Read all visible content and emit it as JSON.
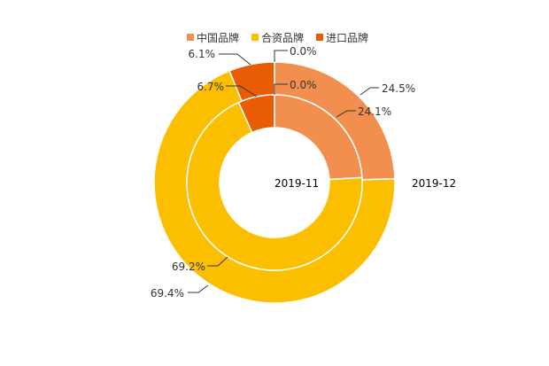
{
  "chart_data": {
    "type": "pie",
    "variant": "nested-donut",
    "legend": [
      "中国品牌",
      "合资品牌",
      "进口品牌"
    ],
    "legend_placement": "top-center",
    "colors": [
      "#f28f4f",
      "#fbbf00",
      "#e85d04"
    ],
    "series": [
      {
        "name": "2019-11",
        "ring": "inner",
        "values": [
          24.1,
          69.2,
          6.7
        ],
        "labels": [
          "24.1%",
          "69.2%",
          "6.7%"
        ],
        "extra_labels": [
          "0.0%"
        ]
      },
      {
        "name": "2019-12",
        "ring": "outer",
        "values": [
          24.5,
          69.4,
          6.1
        ],
        "labels": [
          "24.5%",
          "69.4%",
          "6.1%"
        ],
        "extra_labels": [
          "0.0%"
        ]
      }
    ]
  }
}
